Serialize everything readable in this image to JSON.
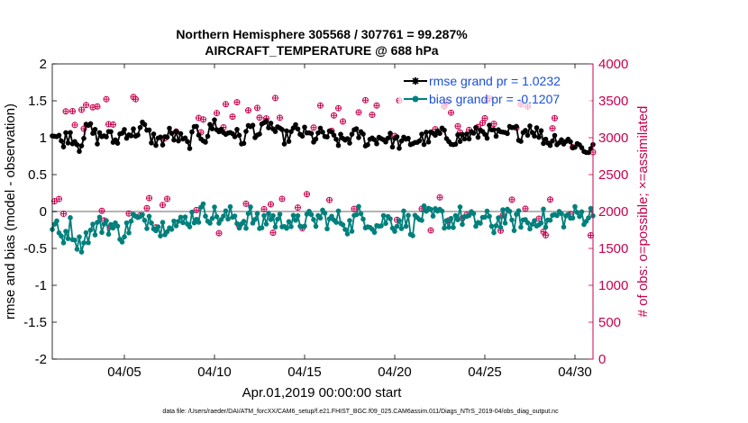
{
  "chart_data": {
    "type": "line",
    "title": "Northern Hemisphere 305568 / 307761 = 99.287%",
    "subtitle": "AIRCRAFT_TEMPERATURE @ 688 hPa",
    "xlabel": "Apr.01,2019 00:00:00 start",
    "ylabel_left": "rmse and bias (model - observation)",
    "ylabel_right": "# of obs: o=possible; ×=assimilated",
    "xlim": [
      1,
      31
    ],
    "ylim_left": [
      -2,
      2
    ],
    "ylim_right": [
      0,
      4000
    ],
    "x_ticks": [
      {
        "value": 5,
        "label": "04/05"
      },
      {
        "value": 10,
        "label": "04/10"
      },
      {
        "value": 15,
        "label": "04/15"
      },
      {
        "value": 20,
        "label": "04/20"
      },
      {
        "value": 25,
        "label": "04/25"
      },
      {
        "value": 30,
        "label": "04/30"
      }
    ],
    "y_ticks_left": [
      "2",
      "1.5",
      "1",
      "0.5",
      "0",
      "-0.5",
      "-1",
      "-1.5",
      "-2"
    ],
    "y_ticks_right": [
      "4000",
      "3500",
      "3000",
      "2500",
      "2000",
      "1500",
      "1000",
      "500",
      "0"
    ],
    "colors": {
      "rmse": "#000000",
      "bias": "#00807c",
      "obs": "#c8004f",
      "zero_line": "#b4b4b4",
      "legend_text": "#1a4fd6"
    },
    "series": [
      {
        "name": "rmse grand pr = 1.0232",
        "anchors": [
          [
            1.0,
            1.05
          ],
          [
            1.5,
            0.95
          ],
          [
            2.0,
            1.05
          ],
          [
            2.5,
            0.9
          ],
          [
            3.0,
            1.15
          ],
          [
            3.5,
            1.0
          ],
          [
            4.0,
            1.05
          ],
          [
            4.5,
            0.95
          ],
          [
            5.0,
            1.1
          ],
          [
            5.5,
            1.05
          ],
          [
            6.0,
            1.15
          ],
          [
            6.5,
            1.0
          ],
          [
            7.0,
            0.95
          ],
          [
            7.5,
            1.05
          ],
          [
            8.0,
            1.0
          ],
          [
            8.5,
            0.9
          ],
          [
            9.0,
            1.1
          ],
          [
            9.5,
            1.0
          ],
          [
            10.0,
            1.2
          ],
          [
            10.5,
            1.05
          ],
          [
            11.0,
            1.1
          ],
          [
            11.5,
            0.95
          ],
          [
            12.0,
            1.15
          ],
          [
            12.5,
            1.05
          ],
          [
            13.0,
            1.2
          ],
          [
            13.5,
            1.05
          ],
          [
            14.0,
            1.0
          ],
          [
            14.5,
            1.1
          ],
          [
            15.0,
            1.05
          ],
          [
            15.5,
            1.0
          ],
          [
            16.0,
            1.05
          ],
          [
            16.5,
            1.0
          ],
          [
            17.0,
            0.95
          ],
          [
            17.5,
            1.0
          ],
          [
            18.0,
            1.05
          ],
          [
            18.5,
            0.95
          ],
          [
            19.0,
            1.0
          ],
          [
            19.5,
            1.0
          ],
          [
            20.0,
            0.95
          ],
          [
            20.5,
            0.92
          ],
          [
            21.0,
            0.95
          ],
          [
            21.5,
            0.98
          ],
          [
            22.0,
            1.0
          ],
          [
            22.5,
            1.05
          ],
          [
            23.0,
            1.0
          ],
          [
            23.5,
            0.98
          ],
          [
            24.0,
            1.02
          ],
          [
            24.5,
            1.05
          ],
          [
            25.0,
            1.1
          ],
          [
            25.5,
            1.05
          ],
          [
            26.0,
            1.0
          ],
          [
            26.5,
            1.1
          ],
          [
            27.0,
            1.05
          ],
          [
            27.5,
            1.15
          ],
          [
            28.0,
            1.05
          ],
          [
            28.5,
            0.95
          ],
          [
            29.0,
            1.0
          ],
          [
            29.5,
            0.95
          ],
          [
            30.0,
            0.92
          ],
          [
            30.5,
            0.85
          ],
          [
            31.0,
            0.83
          ]
        ]
      },
      {
        "name": "bias grand pr = -0.1207",
        "anchors": [
          [
            1.0,
            -0.15
          ],
          [
            1.5,
            -0.35
          ],
          [
            2.0,
            -0.2
          ],
          [
            2.5,
            -0.45
          ],
          [
            3.0,
            -0.3
          ],
          [
            3.5,
            -0.2
          ],
          [
            4.0,
            -0.15
          ],
          [
            4.5,
            -0.25
          ],
          [
            5.0,
            -0.3
          ],
          [
            5.5,
            -0.1
          ],
          [
            6.0,
            -0.15
          ],
          [
            6.5,
            -0.05
          ],
          [
            7.0,
            -0.25
          ],
          [
            7.5,
            -0.1
          ],
          [
            8.0,
            -0.2
          ],
          [
            8.5,
            -0.1
          ],
          [
            9.0,
            -0.05
          ],
          [
            9.5,
            0.0
          ],
          [
            10.0,
            -0.05
          ],
          [
            10.5,
            -0.1
          ],
          [
            11.0,
            -0.05
          ],
          [
            11.5,
            -0.15
          ],
          [
            12.0,
            -0.05
          ],
          [
            12.5,
            -0.2
          ],
          [
            13.0,
            -0.05
          ],
          [
            13.5,
            -0.15
          ],
          [
            14.0,
            -0.1
          ],
          [
            14.5,
            -0.2
          ],
          [
            15.0,
            -0.1
          ],
          [
            15.5,
            -0.15
          ],
          [
            16.0,
            -0.05
          ],
          [
            16.5,
            -0.15
          ],
          [
            17.0,
            -0.1
          ],
          [
            17.5,
            -0.2
          ],
          [
            18.0,
            -0.05
          ],
          [
            18.5,
            -0.1
          ],
          [
            19.0,
            -0.2
          ],
          [
            19.5,
            -0.1
          ],
          [
            20.0,
            -0.15
          ],
          [
            20.5,
            -0.1
          ],
          [
            21.0,
            -0.2
          ],
          [
            21.5,
            -0.05
          ],
          [
            22.0,
            -0.1
          ],
          [
            22.5,
            -0.05
          ],
          [
            23.0,
            -0.15
          ],
          [
            23.5,
            -0.05
          ],
          [
            24.0,
            -0.1
          ],
          [
            24.5,
            -0.15
          ],
          [
            25.0,
            -0.1
          ],
          [
            25.5,
            -0.2
          ],
          [
            26.0,
            -0.05
          ],
          [
            26.5,
            -0.15
          ],
          [
            27.0,
            -0.1
          ],
          [
            27.5,
            -0.2
          ],
          [
            28.0,
            -0.05
          ],
          [
            28.5,
            -0.15
          ],
          [
            29.0,
            -0.05
          ],
          [
            29.5,
            -0.1
          ],
          [
            30.0,
            -0.05
          ],
          [
            30.5,
            -0.05
          ],
          [
            31.0,
            -0.05
          ]
        ]
      },
      {
        "name": "obs possible/assimilated",
        "anchors": [
          [
            1.0,
            3100
          ],
          [
            2.0,
            3250
          ],
          [
            3.0,
            3200
          ],
          [
            4.0,
            3300
          ],
          [
            5.0,
            3350
          ],
          [
            6.0,
            3300
          ],
          [
            7.0,
            3250
          ],
          [
            8.0,
            3200
          ],
          [
            9.0,
            3150
          ],
          [
            10.0,
            3350
          ],
          [
            11.0,
            3300
          ],
          [
            12.0,
            3250
          ],
          [
            13.0,
            3300
          ],
          [
            14.0,
            3350
          ],
          [
            15.0,
            3300
          ],
          [
            16.0,
            3250
          ],
          [
            17.0,
            3350
          ],
          [
            18.0,
            3300
          ],
          [
            19.0,
            3200
          ],
          [
            20.0,
            3250
          ],
          [
            21.0,
            3300
          ],
          [
            22.0,
            3350
          ],
          [
            23.0,
            3300
          ],
          [
            24.0,
            3250
          ],
          [
            25.0,
            3300
          ],
          [
            26.0,
            3350
          ],
          [
            27.0,
            3300
          ],
          [
            28.0,
            3200
          ],
          [
            29.0,
            3150
          ],
          [
            30.0,
            3100
          ],
          [
            31.0,
            3000
          ]
        ]
      }
    ]
  },
  "legend": {
    "rmse_label": "rmse grand pr = 1.0232",
    "bias_label": "bias grand pr = -0.1207"
  },
  "footnote": "data file: /Users/raeder/DAI/ATM_forcXX/CAM6_setup/f.e21.FHIST_BGC.f09_025.CAM6assim.011/Diags_NTrS_2019-04/obs_diag_output.nc"
}
